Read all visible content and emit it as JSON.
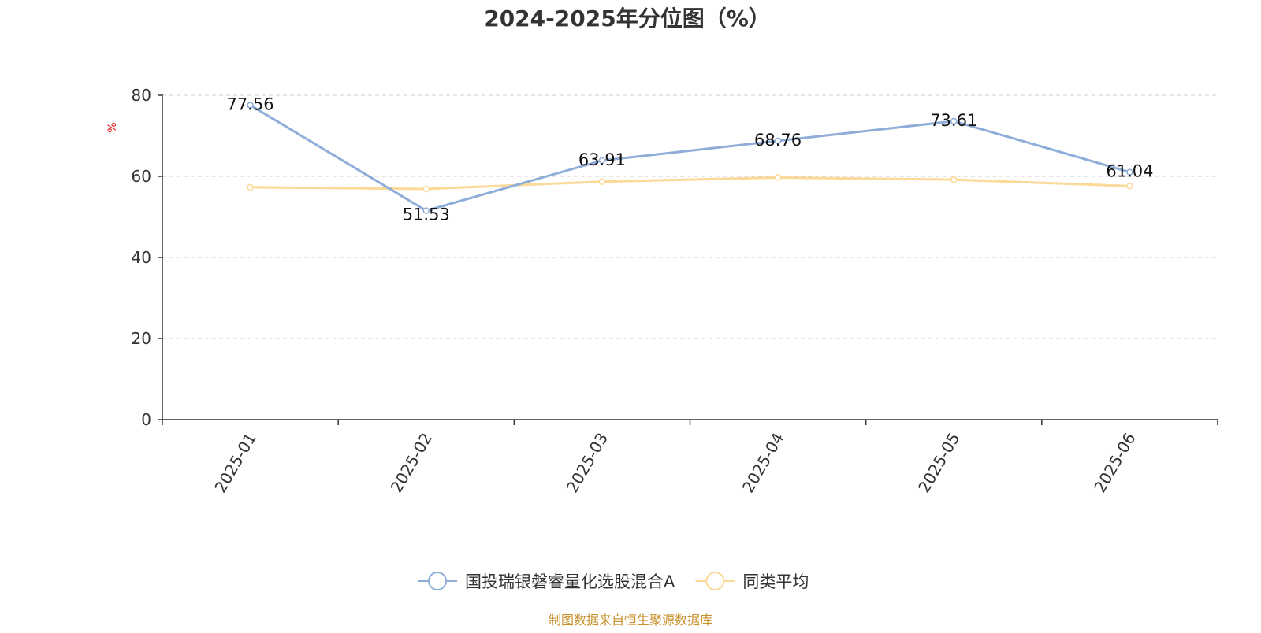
{
  "chart_data": {
    "type": "line",
    "title": "2024-2025年分位图（%）",
    "ylabel": "%",
    "xlabel": "",
    "categories": [
      "2025-01",
      "2025-02",
      "2025-03",
      "2025-04",
      "2025-05",
      "2025-06"
    ],
    "ylim": [
      0,
      80
    ],
    "yticks": [
      0,
      20,
      40,
      60,
      80
    ],
    "grid": true,
    "legend_position": "bottom",
    "series": [
      {
        "name": "国投瑞银磐睿量化选股混合A",
        "color": "#8eadd9",
        "values": [
          77.56,
          51.53,
          63.91,
          68.76,
          73.61,
          61.04
        ],
        "labels": [
          "77.56",
          "51.53",
          "63.91",
          "68.76",
          "73.61",
          "61.04"
        ],
        "label_side": [
          "above",
          "below",
          "above",
          "above",
          "above",
          "above"
        ]
      },
      {
        "name": "同类平均",
        "color": "#fbd998",
        "values": [
          57.3,
          56.9,
          58.7,
          59.7,
          59.2,
          57.6
        ]
      }
    ]
  },
  "colors": {
    "axis": "#333333",
    "grid": "#cccccc",
    "unit_label": "#e00000",
    "source": "#c8902a"
  },
  "source_note": "制图数据来自恒生聚源数据库"
}
